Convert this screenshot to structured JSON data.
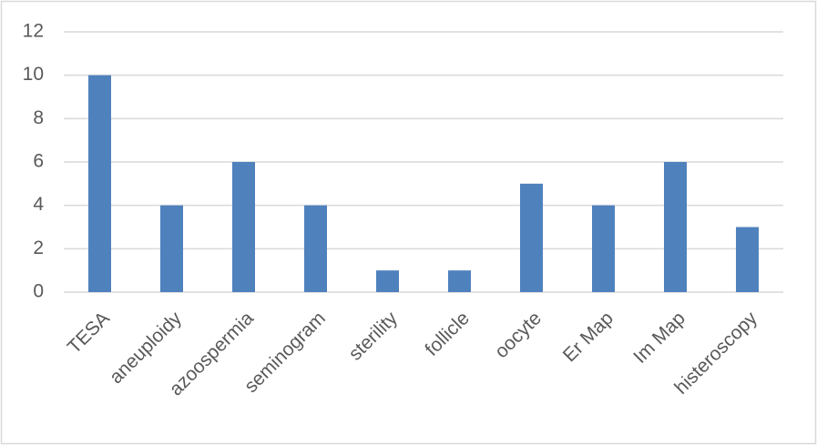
{
  "chart_data": {
    "type": "bar",
    "categories": [
      "TESA",
      "aneuploidy",
      "azoospermia",
      "seminogram",
      "sterility",
      "follicle",
      "oocyte",
      "Er Map",
      "Im Map",
      "histeroscopy"
    ],
    "values": [
      10,
      4,
      6,
      4,
      1,
      1,
      5,
      4,
      6,
      3
    ],
    "color": "#4f81bd",
    "ylim": [
      0,
      12
    ],
    "yticks": [
      0,
      2,
      4,
      6,
      8,
      10,
      12
    ],
    "grid": true
  }
}
